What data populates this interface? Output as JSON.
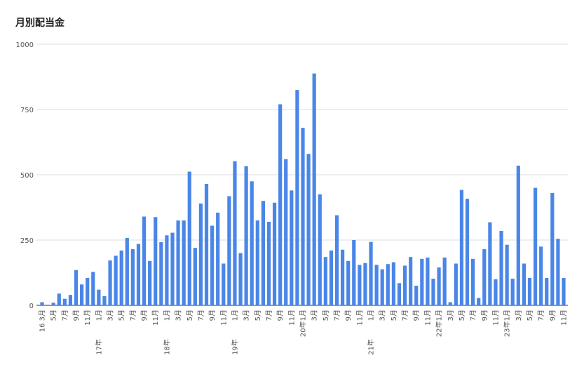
{
  "chart_data": {
    "type": "bar",
    "title": "月別配当金",
    "categories": [
      "16 3月",
      null,
      "5月",
      null,
      "7月",
      null,
      "9月",
      null,
      "11月",
      null,
      "1月",
      null,
      "3月",
      null,
      "5月",
      null,
      "7月",
      null,
      "9月",
      null,
      "11月",
      null,
      "1月",
      null,
      "3月",
      null,
      "5月",
      null,
      "7月",
      null,
      "9月",
      null,
      "11月",
      null,
      "1月",
      null,
      "3月",
      null,
      "5月",
      null,
      "7月",
      null,
      "9月",
      null,
      "11月",
      null,
      "20年1月",
      null,
      "3月",
      null,
      "5月",
      null,
      "7月",
      null,
      "9月",
      null,
      "11月",
      null,
      "1月",
      null,
      "3月",
      null,
      "5月",
      null,
      "7月",
      null,
      "9月",
      null,
      "11月",
      null,
      "22年1月",
      null,
      "3月",
      null,
      "5月",
      null,
      "7月",
      null,
      "9月",
      null,
      "11月",
      null,
      "23年1月",
      null,
      "3月",
      null,
      "5月",
      null,
      "7月",
      null,
      "9月",
      null,
      "11月"
    ],
    "year_labels": [
      {
        "index": 10,
        "label": "17年"
      },
      {
        "index": 22,
        "label": "18年"
      },
      {
        "index": 34,
        "label": "19年"
      },
      {
        "index": 58,
        "label": "21年"
      }
    ],
    "values": [
      12,
      0,
      10,
      45,
      25,
      40,
      135,
      80,
      105,
      128,
      60,
      35,
      172,
      190,
      210,
      258,
      215,
      235,
      340,
      170,
      338,
      242,
      268,
      278,
      325,
      325,
      512,
      220,
      390,
      465,
      305,
      355,
      160,
      418,
      552,
      200,
      533,
      475,
      325,
      400,
      320,
      393,
      770,
      560,
      440,
      825,
      680,
      580,
      888,
      425,
      185,
      210,
      345,
      213,
      170,
      250,
      155,
      162,
      243,
      155,
      138,
      158,
      165,
      85,
      152,
      185,
      75,
      178,
      183,
      102,
      145,
      183,
      12,
      160,
      442,
      408,
      178,
      28,
      215,
      318,
      100,
      285,
      232,
      102,
      535,
      160,
      105,
      450,
      225,
      105,
      430,
      255,
      105
    ],
    "color": "#4a86e8",
    "ylim": [
      0,
      1000
    ],
    "yticks": [
      0,
      250,
      500,
      750,
      1000
    ],
    "grid": true
  }
}
